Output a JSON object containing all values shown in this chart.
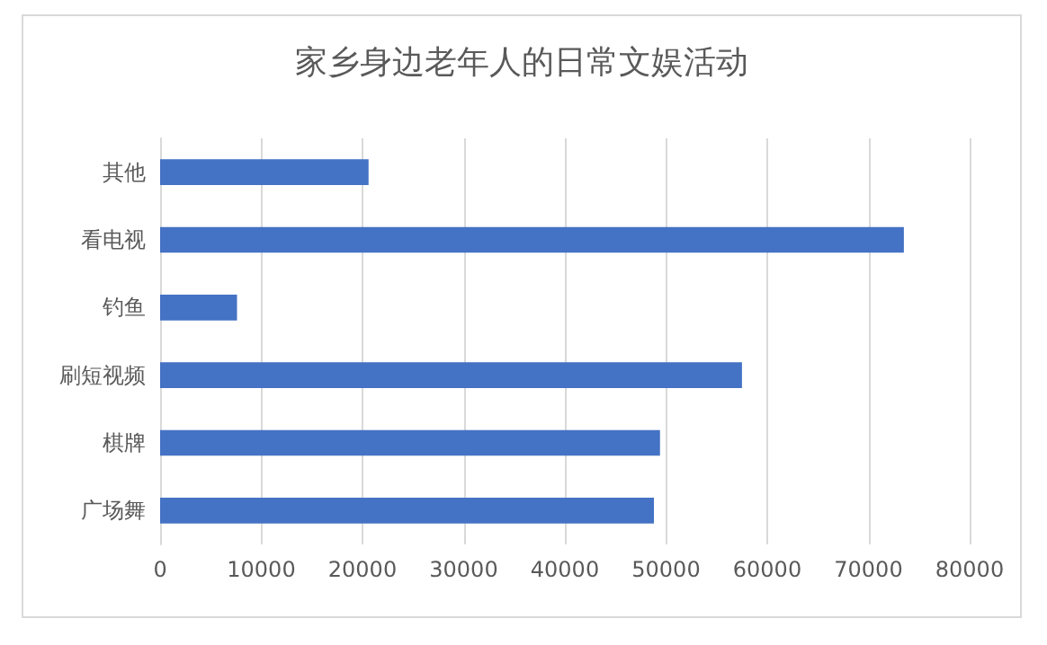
{
  "chart_data": {
    "type": "bar",
    "orientation": "horizontal",
    "title": "家乡身边老年人的日常文娱活动",
    "categories": [
      "其他",
      "看电视",
      "钓鱼",
      "刷短视频",
      "棋牌",
      "广场舞"
    ],
    "values": [
      20600,
      73500,
      7600,
      57500,
      49400,
      48800
    ],
    "color": "#4472c4",
    "xlim": [
      0,
      80000
    ],
    "xticks": [
      0,
      10000,
      20000,
      30000,
      40000,
      50000,
      60000,
      70000,
      80000
    ],
    "grid": "x"
  }
}
